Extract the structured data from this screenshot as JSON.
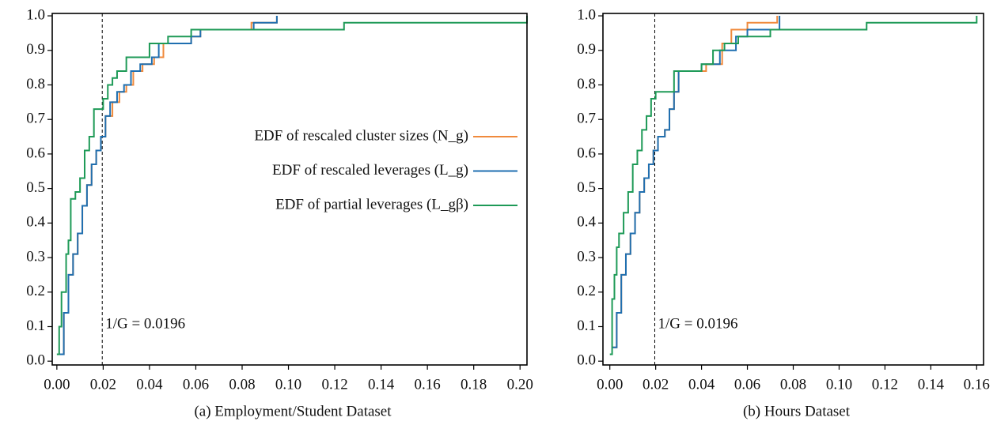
{
  "chart_data": [
    {
      "type": "step",
      "caption": "(a) Employment/Student Dataset",
      "xlim": [
        -0.002,
        0.203
      ],
      "ylim": [
        -0.011,
        1.007
      ],
      "xticks": [
        {
          "value": 0,
          "label": "0.00"
        },
        0.02,
        0.04,
        0.06,
        0.08,
        {
          "value": 0.1,
          "label": "0.10"
        },
        0.12,
        0.14,
        0.16,
        0.18,
        {
          "value": 0.2,
          "label": "0.20"
        }
      ],
      "yticks": [
        {
          "value": 0,
          "label": "0.0"
        },
        0.1,
        0.2,
        0.3,
        0.4,
        0.5,
        0.6,
        0.7,
        0.8,
        0.9,
        {
          "value": 1,
          "label": "1.0"
        }
      ],
      "vline": 0.0196,
      "annotation": "1/G = 0.0196",
      "legend": "center right",
      "series": [
        {
          "name": "EDF of rescaled cluster sizes (N_g)",
          "color": "#f08a3c",
          "x": [
            0.001,
            0.003,
            0.005,
            0.007,
            0.009,
            0.011,
            0.013,
            0.015,
            0.017,
            0.019,
            0.021,
            0.024,
            0.027,
            0.03,
            0.033,
            0.037,
            0.042,
            0.046,
            0.05,
            0.058,
            0.062,
            0.084,
            0.095
          ],
          "values": [
            0.02,
            0.14,
            0.25,
            0.31,
            0.37,
            0.45,
            0.51,
            0.57,
            0.61,
            0.65,
            0.71,
            0.75,
            0.78,
            0.8,
            0.84,
            0.86,
            0.88,
            0.92,
            0.92,
            0.94,
            0.96,
            0.98,
            1.0
          ]
        },
        {
          "name": "EDF of rescaled leverages (L_g)",
          "color": "#1f6fb0",
          "x": [
            0.001,
            0.003,
            0.005,
            0.007,
            0.009,
            0.011,
            0.013,
            0.015,
            0.017,
            0.019,
            0.021,
            0.023,
            0.026,
            0.029,
            0.032,
            0.036,
            0.041,
            0.044,
            0.05,
            0.058,
            0.062,
            0.085,
            0.095
          ],
          "values": [
            0.02,
            0.14,
            0.25,
            0.31,
            0.37,
            0.45,
            0.51,
            0.57,
            0.61,
            0.65,
            0.71,
            0.75,
            0.78,
            0.8,
            0.84,
            0.86,
            0.88,
            0.92,
            0.92,
            0.94,
            0.96,
            0.98,
            1.0
          ]
        },
        {
          "name": "EDF of partial leverages (L_gβ)",
          "color": "#1e9a57",
          "x": [
            0.0,
            0.001,
            0.002,
            0.004,
            0.005,
            0.006,
            0.008,
            0.01,
            0.012,
            0.014,
            0.016,
            0.018,
            0.02,
            0.022,
            0.024,
            0.026,
            0.03,
            0.034,
            0.04,
            0.048,
            0.058,
            0.066,
            0.124,
            0.203
          ],
          "values": [
            0.02,
            0.1,
            0.2,
            0.31,
            0.35,
            0.47,
            0.49,
            0.53,
            0.61,
            0.65,
            0.73,
            0.73,
            0.76,
            0.8,
            0.82,
            0.84,
            0.88,
            0.88,
            0.92,
            0.94,
            0.96,
            0.96,
            0.98,
            1.0
          ]
        }
      ]
    },
    {
      "type": "step",
      "caption": "(b) Hours Dataset",
      "xlim": [
        -0.003,
        0.163
      ],
      "ylim": [
        -0.011,
        1.007
      ],
      "xticks": [
        {
          "value": 0,
          "label": "0.00"
        },
        0.02,
        0.04,
        0.06,
        0.08,
        {
          "value": 0.1,
          "label": "0.10"
        },
        0.12,
        0.14,
        0.16
      ],
      "yticks": [
        {
          "value": 0,
          "label": "0.0"
        },
        0.1,
        0.2,
        0.3,
        0.4,
        0.5,
        0.6,
        0.7,
        0.8,
        0.9,
        {
          "value": 1,
          "label": "1.0"
        }
      ],
      "vline": 0.0196,
      "annotation": "1/G = 0.0196",
      "series": [
        {
          "color": "#f08a3c",
          "x": [
            0.001,
            0.003,
            0.005,
            0.007,
            0.009,
            0.011,
            0.013,
            0.015,
            0.017,
            0.019,
            0.021,
            0.024,
            0.026,
            0.028,
            0.03,
            0.036,
            0.042,
            0.049,
            0.053,
            0.06,
            0.073
          ],
          "values": [
            0.04,
            0.14,
            0.25,
            0.31,
            0.37,
            0.43,
            0.49,
            0.53,
            0.57,
            0.61,
            0.65,
            0.67,
            0.73,
            0.78,
            0.84,
            0.84,
            0.86,
            0.92,
            0.96,
            0.98,
            1.0
          ]
        },
        {
          "color": "#1f6fb0",
          "x": [
            0.001,
            0.003,
            0.005,
            0.007,
            0.009,
            0.011,
            0.013,
            0.015,
            0.017,
            0.019,
            0.021,
            0.024,
            0.026,
            0.028,
            0.03,
            0.036,
            0.04,
            0.048,
            0.055,
            0.06,
            0.074
          ],
          "values": [
            0.04,
            0.14,
            0.25,
            0.31,
            0.37,
            0.43,
            0.49,
            0.53,
            0.57,
            0.61,
            0.65,
            0.67,
            0.73,
            0.78,
            0.84,
            0.84,
            0.86,
            0.9,
            0.94,
            0.96,
            1.0
          ]
        },
        {
          "color": "#1e9a57",
          "x": [
            0.0,
            0.001,
            0.002,
            0.003,
            0.004,
            0.006,
            0.008,
            0.01,
            0.012,
            0.014,
            0.016,
            0.018,
            0.02,
            0.024,
            0.028,
            0.034,
            0.04,
            0.045,
            0.05,
            0.056,
            0.07,
            0.112,
            0.16
          ],
          "values": [
            0.02,
            0.18,
            0.25,
            0.33,
            0.37,
            0.43,
            0.49,
            0.57,
            0.61,
            0.67,
            0.71,
            0.76,
            0.78,
            0.78,
            0.84,
            0.84,
            0.86,
            0.9,
            0.92,
            0.94,
            0.96,
            0.98,
            1.0
          ]
        }
      ]
    }
  ]
}
